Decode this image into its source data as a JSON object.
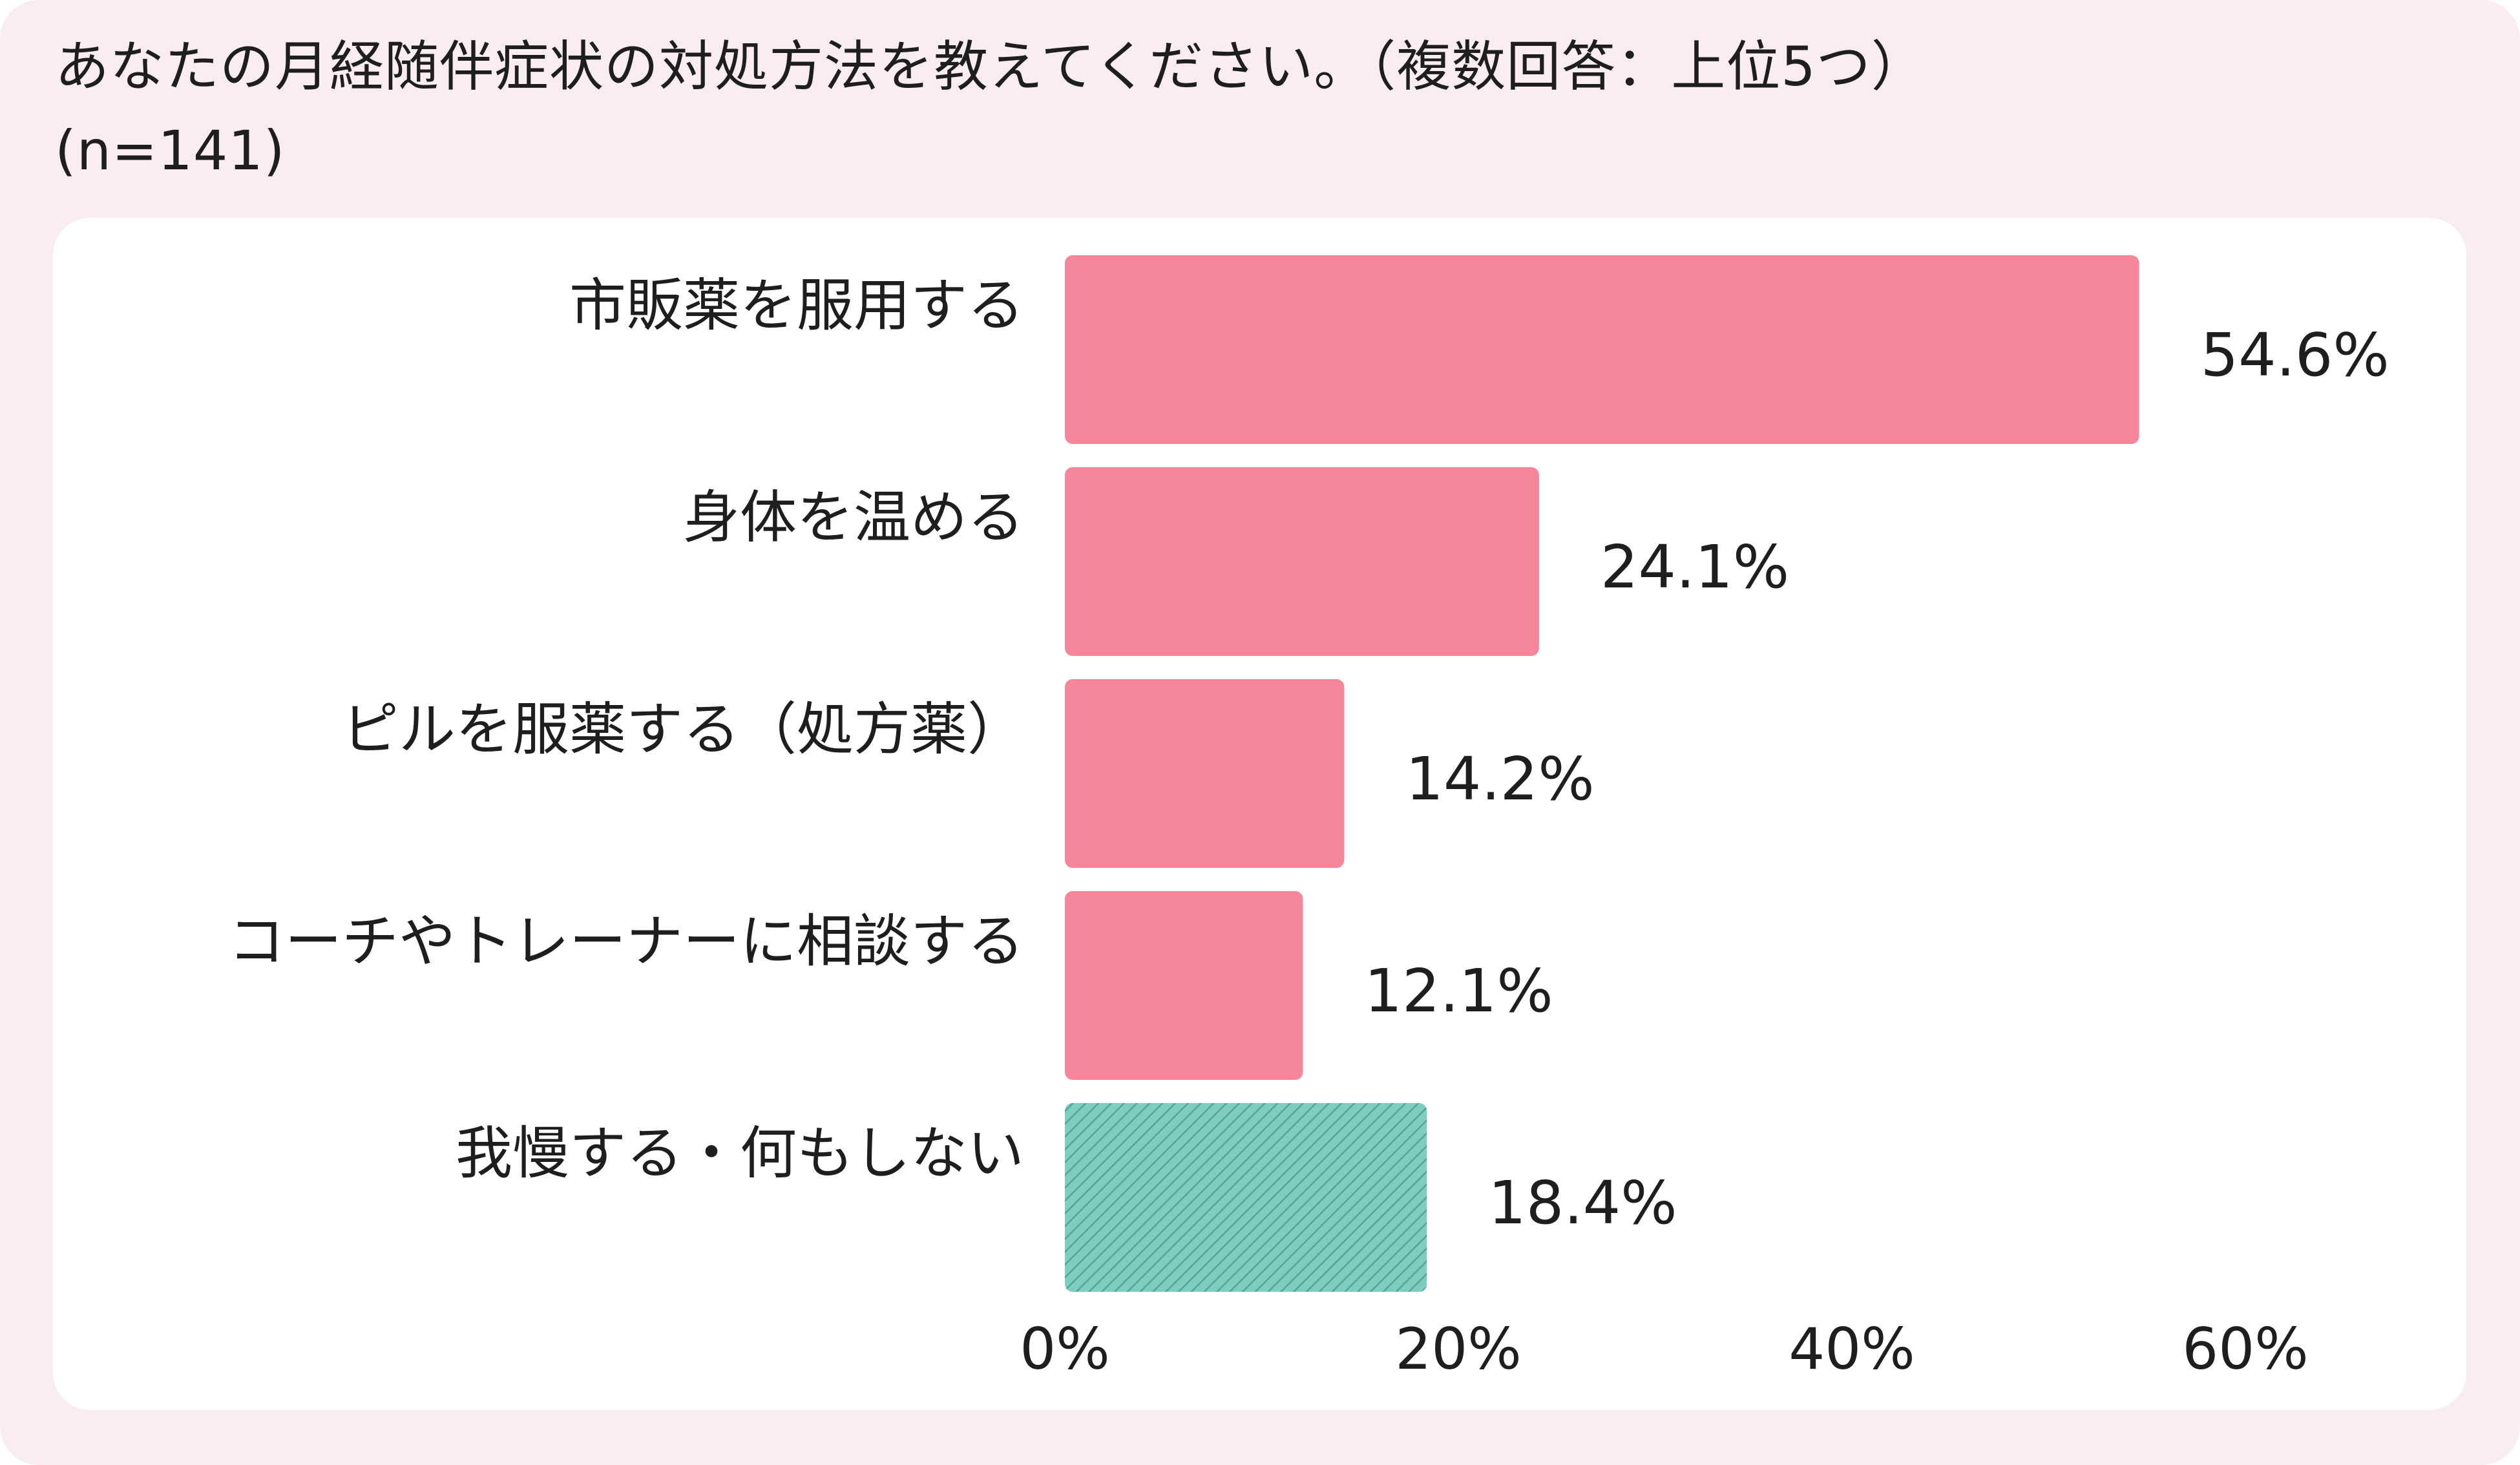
{
  "title_line1": "あなたの月経随伴症状の対処方法を教えてください。（複数回答：上位5つ）",
  "title_line2": "(n=141)",
  "colors": {
    "background": "#f9edf3",
    "panel": "#ffffff",
    "bar": "#f6869a",
    "hatched_bar": "#7fcdc1",
    "hatch_line": "#4fa79a"
  },
  "chart_data": {
    "type": "bar",
    "orientation": "horizontal",
    "categories": [
      "市販薬を服用する",
      "身体を温める",
      "ピルを服薬する（処方薬）",
      "コーチやトレーナーに相談する",
      "我慢する・何もしない"
    ],
    "values": [
      54.6,
      24.1,
      14.2,
      12.1,
      18.4
    ],
    "value_labels": [
      "54.6%",
      "24.1%",
      "14.2%",
      "12.1%",
      "18.4%"
    ],
    "hatched": [
      false,
      false,
      false,
      false,
      true
    ],
    "xlim": [
      0,
      60
    ],
    "x_ticks": [
      0,
      20,
      40,
      60
    ],
    "x_tick_labels": [
      "0%",
      "20%",
      "40%",
      "60%"
    ],
    "grid": false,
    "legend": "none"
  }
}
